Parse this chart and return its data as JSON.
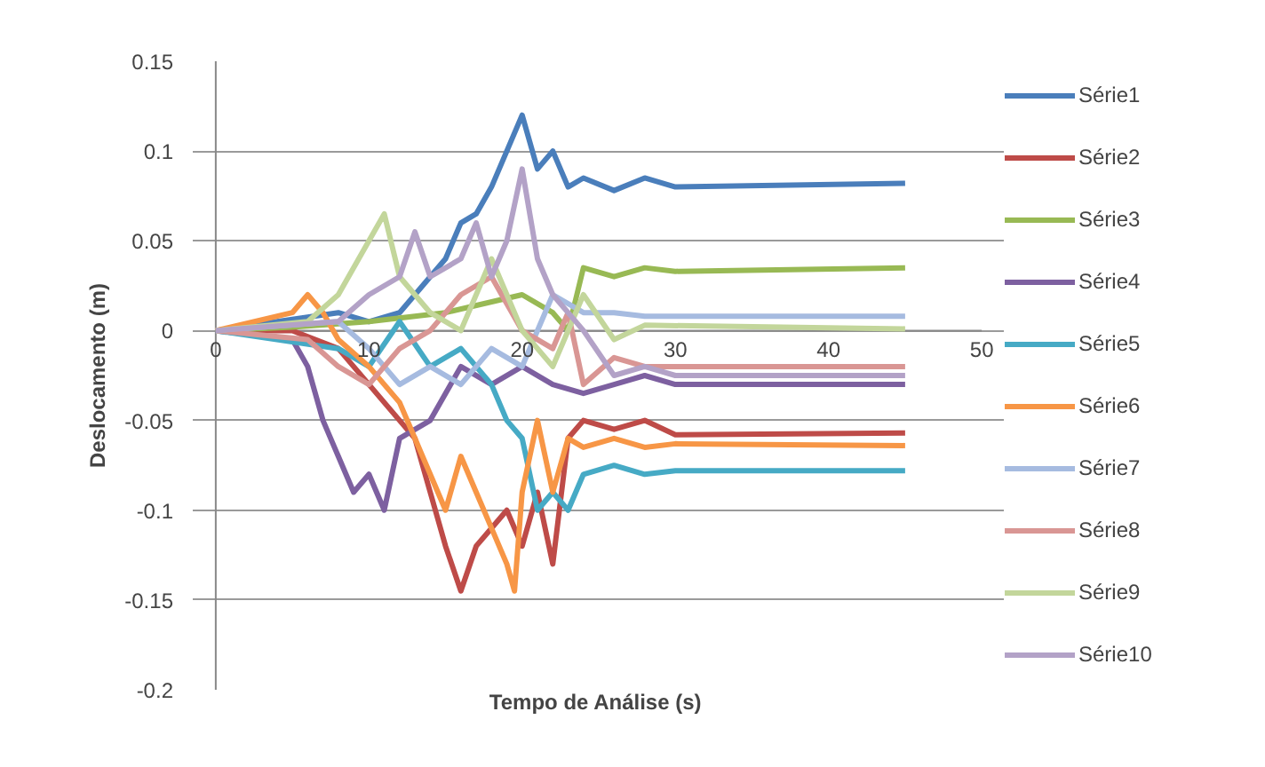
{
  "chart_data": {
    "type": "line",
    "xlabel": "Tempo de Análise  (s)",
    "ylabel": "Deslocamento (m)",
    "xlim": [
      0,
      50
    ],
    "xticks": [
      0,
      10,
      20,
      30,
      40,
      50
    ],
    "ylim": [
      -0.2,
      0.15
    ],
    "yticks": [
      -0.2,
      -0.15,
      -0.1,
      -0.05,
      0,
      0.05,
      0.1,
      0.15
    ],
    "grid": "y",
    "legend": "right",
    "marker": "none",
    "line_style": "solid",
    "series": [
      {
        "name": "Série1",
        "color": "#4a7ebb",
        "x": [
          0,
          4,
          8,
          10,
          12,
          13,
          14,
          15,
          16,
          17,
          18,
          19,
          20,
          21,
          22,
          23,
          24,
          26,
          28,
          30,
          45
        ],
        "values": [
          0,
          0.005,
          0.01,
          0.005,
          0.01,
          0.02,
          0.03,
          0.04,
          0.06,
          0.065,
          0.08,
          0.1,
          0.12,
          0.09,
          0.1,
          0.08,
          0.085,
          0.078,
          0.085,
          0.08,
          0.082
        ]
      },
      {
        "name": "Série2",
        "color": "#be4b48",
        "x": [
          0,
          5,
          8,
          10,
          12,
          13,
          14,
          15,
          16,
          17,
          18,
          19,
          20,
          21,
          22,
          23,
          24,
          26,
          28,
          30,
          45
        ],
        "values": [
          0,
          0,
          -0.01,
          -0.03,
          -0.05,
          -0.06,
          -0.09,
          -0.12,
          -0.145,
          -0.12,
          -0.11,
          -0.1,
          -0.12,
          -0.09,
          -0.13,
          -0.06,
          -0.05,
          -0.055,
          -0.05,
          -0.058,
          -0.057
        ]
      },
      {
        "name": "Série3",
        "color": "#98b954",
        "x": [
          0,
          5,
          10,
          15,
          20,
          22,
          23,
          24,
          26,
          28,
          30,
          45
        ],
        "values": [
          0,
          0.002,
          0.005,
          0.01,
          0.02,
          0.01,
          0,
          0.035,
          0.03,
          0.035,
          0.033,
          0.035
        ]
      },
      {
        "name": "Série4",
        "color": "#7d60a0",
        "x": [
          0,
          5,
          6,
          7,
          8,
          9,
          10,
          11,
          12,
          14,
          16,
          18,
          20,
          22,
          24,
          26,
          28,
          30,
          45
        ],
        "values": [
          0,
          -0.005,
          -0.02,
          -0.05,
          -0.07,
          -0.09,
          -0.08,
          -0.1,
          -0.06,
          -0.05,
          -0.02,
          -0.03,
          -0.02,
          -0.03,
          -0.035,
          -0.03,
          -0.025,
          -0.03,
          -0.03
        ]
      },
      {
        "name": "Série5",
        "color": "#46aac5",
        "x": [
          0,
          8,
          10,
          12,
          14,
          16,
          18,
          19,
          20,
          21,
          22,
          23,
          24,
          26,
          28,
          30,
          45
        ],
        "values": [
          0,
          -0.01,
          -0.02,
          0.005,
          -0.02,
          -0.01,
          -0.03,
          -0.05,
          -0.06,
          -0.1,
          -0.09,
          -0.1,
          -0.08,
          -0.075,
          -0.08,
          -0.078,
          -0.078
        ]
      },
      {
        "name": "Série6",
        "color": "#f79646",
        "x": [
          0,
          5,
          6,
          7,
          8,
          10,
          12,
          13,
          14,
          15,
          16,
          17,
          18,
          19,
          19.5,
          20,
          21,
          22,
          23,
          24,
          26,
          28,
          30,
          45
        ],
        "values": [
          0,
          0.01,
          0.02,
          0.01,
          -0.005,
          -0.02,
          -0.04,
          -0.06,
          -0.08,
          -0.1,
          -0.07,
          -0.09,
          -0.11,
          -0.13,
          -0.145,
          -0.09,
          -0.05,
          -0.09,
          -0.06,
          -0.065,
          -0.06,
          -0.065,
          -0.063,
          -0.064
        ]
      },
      {
        "name": "Série7",
        "color": "#a6bbe0",
        "x": [
          0,
          8,
          10,
          12,
          14,
          16,
          18,
          20,
          22,
          24,
          26,
          28,
          45
        ],
        "values": [
          0,
          0.005,
          -0.01,
          -0.03,
          -0.02,
          -0.03,
          -0.01,
          -0.02,
          0.02,
          0.01,
          0.01,
          0.008,
          0.008
        ]
      },
      {
        "name": "Série8",
        "color": "#d99694",
        "x": [
          0,
          6,
          8,
          10,
          12,
          14,
          16,
          18,
          20,
          22,
          23,
          24,
          26,
          28,
          45
        ],
        "values": [
          0,
          -0.005,
          -0.02,
          -0.03,
          -0.01,
          0,
          0.02,
          0.03,
          0,
          -0.01,
          0.01,
          -0.03,
          -0.015,
          -0.02,
          -0.02
        ]
      },
      {
        "name": "Série9",
        "color": "#c3d69b",
        "x": [
          0,
          6,
          8,
          10,
          11,
          12,
          14,
          16,
          18,
          20,
          22,
          24,
          26,
          28,
          45
        ],
        "values": [
          0,
          0.005,
          0.02,
          0.05,
          0.065,
          0.03,
          0.01,
          0,
          0.04,
          0,
          -0.02,
          0.02,
          -0.005,
          0.003,
          0.001
        ]
      },
      {
        "name": "Série10",
        "color": "#b3a2c7",
        "x": [
          0,
          8,
          10,
          12,
          13,
          14,
          16,
          17,
          18,
          19,
          20,
          21,
          22,
          24,
          26,
          28,
          30,
          45
        ],
        "values": [
          0,
          0.005,
          0.02,
          0.03,
          0.055,
          0.03,
          0.04,
          0.06,
          0.03,
          0.05,
          0.09,
          0.04,
          0.02,
          0,
          -0.025,
          -0.02,
          -0.025,
          -0.025
        ]
      }
    ]
  }
}
